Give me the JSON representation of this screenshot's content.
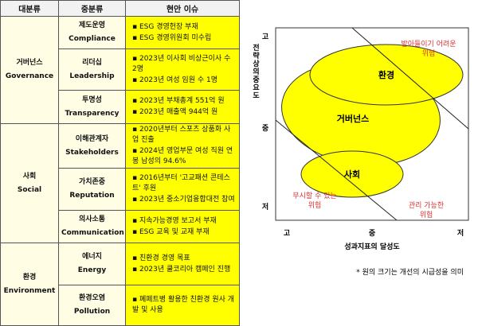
{
  "table": {
    "headers": [
      "대분류",
      "중분류",
      "현안 이슈"
    ],
    "groups": [
      {
        "ko": "거버넌스",
        "en": "Governance",
        "items": [
          {
            "ko": "제도운영",
            "en": "Compliance",
            "issues": [
              "ESG 경영헌장 부재",
              "ESG 경영위원회 미수립"
            ]
          },
          {
            "ko": "리더십",
            "en": "Leadership",
            "issues": [
              "2023년 이사회 비상근이사 수 2명",
              "2023년 여성 임원 수 1명"
            ]
          },
          {
            "ko": "투명성",
            "en": "Transparency",
            "issues": [
              "2023년 부채총계 551억 원",
              "2023년 매출액 944억 원"
            ]
          }
        ]
      },
      {
        "ko": "사회",
        "en": "Social",
        "items": [
          {
            "ko": "이해관계자",
            "en": "Stakeholders",
            "issues": [
              "2020년부터 스포츠 상품화 사업 진출",
              "2024년 영업부문 여성 직원 연봉 남성의 94.6%"
            ]
          },
          {
            "ko": "가치존중",
            "en": "Reputation",
            "issues": [
              "2016년부터 '고교패션 콘테스트' 후원",
              "2023년 중소기업융합대전 참여"
            ]
          },
          {
            "ko": "의사소통",
            "en": "Communication",
            "issues": [
              "지속가능경영 보고서 부재",
              "ESG 교육 및 교재 부재"
            ]
          }
        ]
      },
      {
        "ko": "환경",
        "en": "Environment",
        "items": [
          {
            "ko": "에너지",
            "en": "Energy",
            "issues": [
              "친환경 경영 목표",
              "2023년 쿨코리아 캠페인 진행"
            ]
          },
          {
            "ko": "환경오염",
            "en": "Pollution",
            "issues": [
              "폐페트병 활용한 친환경 원사 개발 및 사용"
            ]
          }
        ]
      }
    ]
  },
  "matrix": {
    "y_title": "전략상의중요도",
    "y_ticks": [
      "고",
      "중",
      "저"
    ],
    "x_title": "성과지표의 달성도",
    "x_ticks": [
      "고",
      "중",
      "저"
    ],
    "bubbles": {
      "environment": "환경",
      "governance": "거버넌스",
      "social": "사회"
    },
    "zones": {
      "unacceptable": [
        "받아들이기 어려운",
        "위험"
      ],
      "negligible": [
        "무시할 수 있는",
        "위험"
      ],
      "manageable": [
        "관리 가능한",
        "위험"
      ]
    },
    "footnote": "* 원의 크기는  개선의 시급성을 의미",
    "colors": {
      "bubble": "#ffff00",
      "zone_text": "#e03030"
    }
  }
}
